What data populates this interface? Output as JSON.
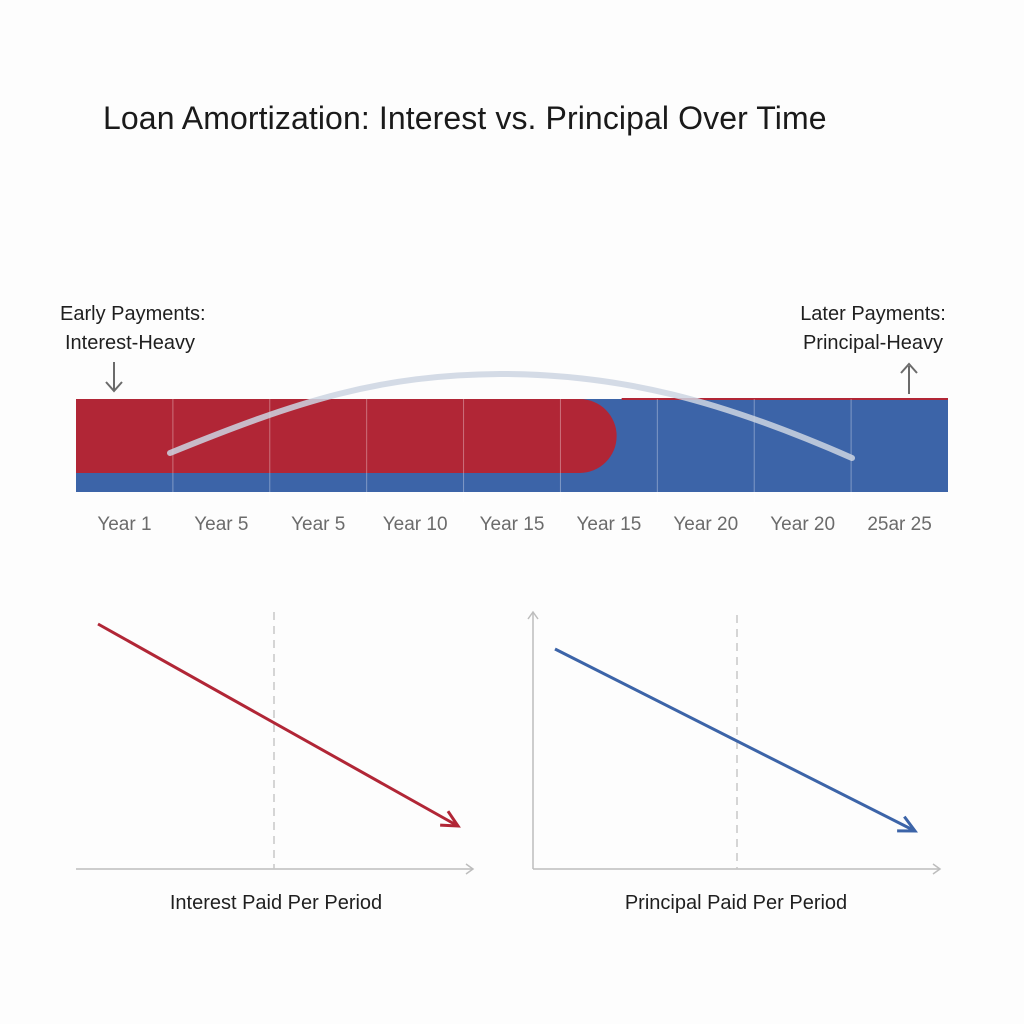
{
  "title": "Loan Amortization: Interest vs. Principal Over Time",
  "annotations": {
    "early": {
      "line1": "Early Payments:",
      "line2": "Interest-Heavy",
      "arrow_icon": "arrow-down-icon"
    },
    "late": {
      "line1": "Later Payments:",
      "line2": "Principal-Heavy",
      "arrow_icon": "arrow-up-icon"
    }
  },
  "colors": {
    "interest": "#b12636",
    "principal": "#3c64a8",
    "grid": "#c8c8c8",
    "axis": "#bdbdbd",
    "curve": "#cdd5e2",
    "tick_text": "#6b6b6b"
  },
  "chart_data": [
    {
      "type": "area",
      "title": "Loan Amortization: Interest vs. Principal Over Time",
      "categories": [
        "Year 1",
        "Year 5",
        "Year 5",
        "Year 10",
        "Year 15",
        "Year 15",
        "Year 20",
        "Year 20",
        "25ar 25"
      ],
      "series": [
        {
          "role": "interest",
          "color": "#b12636",
          "interest_share_end": 0.62
        },
        {
          "role": "principal",
          "color": "#3c64a8"
        }
      ],
      "grid": true,
      "legend": "none"
    },
    {
      "type": "line",
      "xlabel": "Interest Paid Per Period",
      "ylabel": "",
      "x": [
        0,
        1
      ],
      "values": [
        1,
        0
      ],
      "trend": "decreasing",
      "color": "#b12636",
      "grid": true
    },
    {
      "type": "line",
      "xlabel": "Principal Paid Per Period",
      "ylabel": "",
      "x": [
        0,
        1
      ],
      "values": [
        1,
        0
      ],
      "trend": "decreasing",
      "color": "#3c64a8",
      "grid": true
    }
  ]
}
